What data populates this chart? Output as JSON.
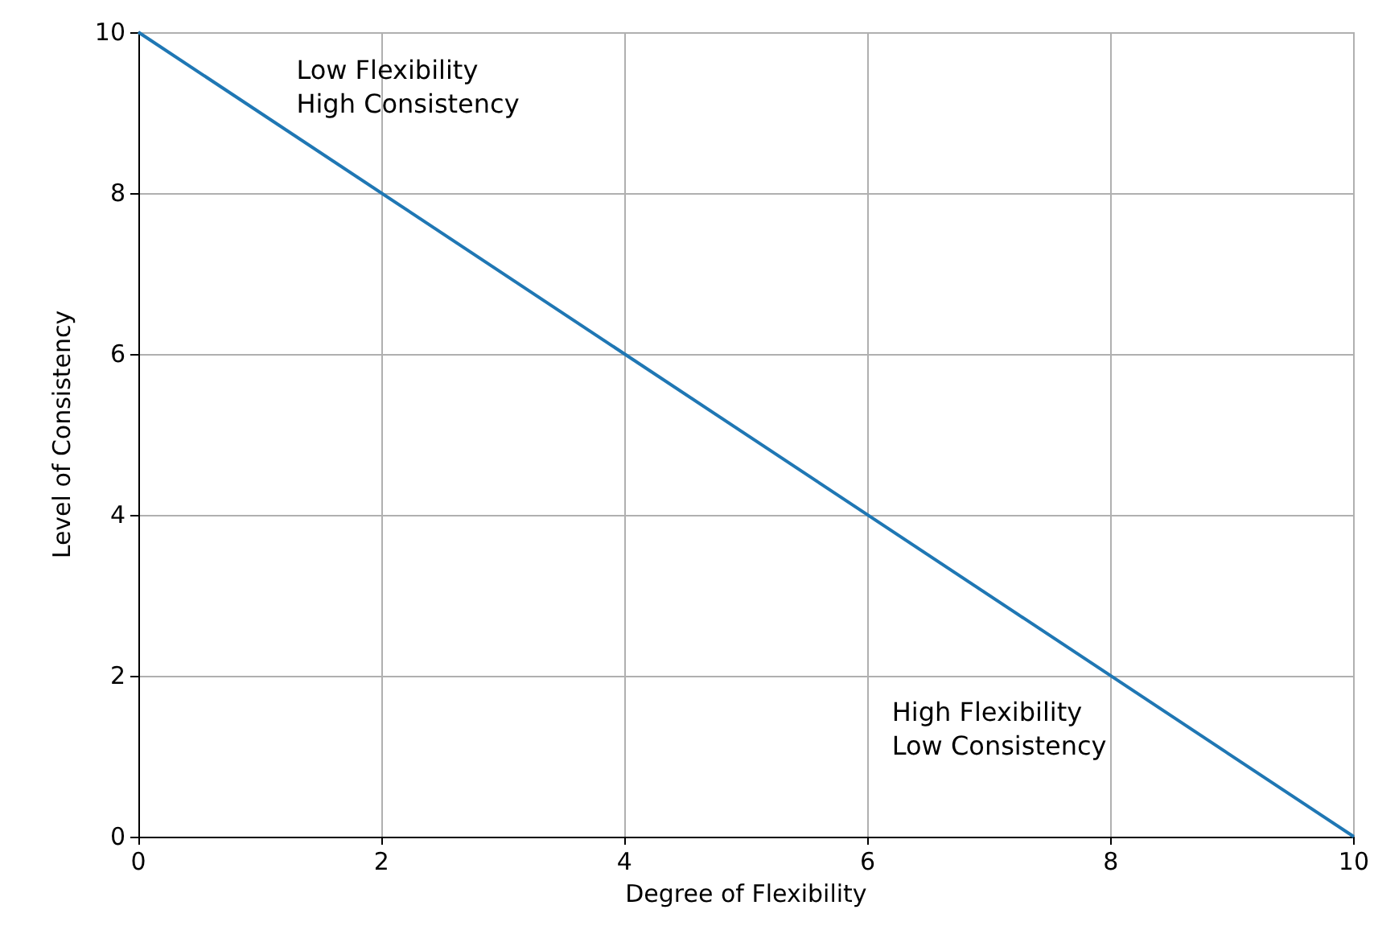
{
  "chart_data": {
    "type": "line",
    "xlabel": "Degree of Flexibility",
    "ylabel": "Level of Consistency",
    "x": [
      0,
      10
    ],
    "series": [
      {
        "color": "#1f77b4",
        "values": [
          10,
          0
        ]
      }
    ],
    "xlim": [
      0,
      10
    ],
    "ylim": [
      0,
      10
    ],
    "xticks": [
      0,
      2,
      4,
      6,
      8,
      10
    ],
    "yticks": [
      0,
      2,
      4,
      6,
      8,
      10
    ],
    "grid": true,
    "marker": "none",
    "annotations": [
      "Low Flexibility\nHigh Consistency",
      "High Flexibility\nLow Consistency"
    ]
  }
}
